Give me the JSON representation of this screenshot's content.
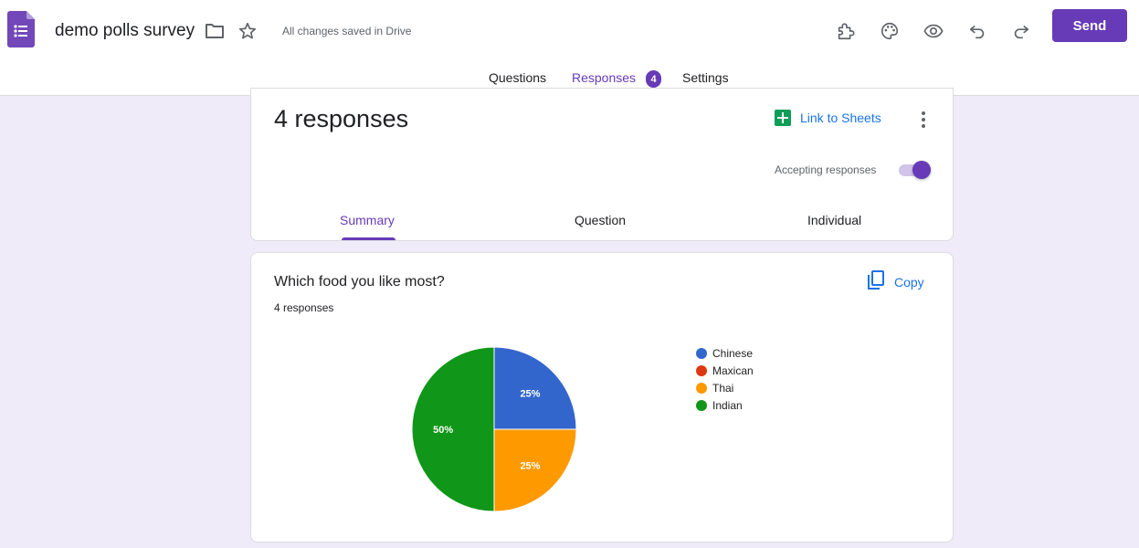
{
  "header": {
    "doc_title": "demo polls survey",
    "save_status": "All changes saved in Drive",
    "send_label": "Send",
    "icons": [
      "forms-logo-icon",
      "folder-icon",
      "star-icon",
      "addon-icon",
      "palette-icon",
      "preview-eye-icon",
      "undo-icon",
      "redo-icon"
    ]
  },
  "tabs": {
    "questions": "Questions",
    "responses": "Responses",
    "responses_badge": "4",
    "settings": "Settings"
  },
  "responses_card": {
    "count_text": "4 responses",
    "link_sheets": "Link to Sheets",
    "accepting_label": "Accepting responses",
    "accepting_on": true,
    "subtabs": {
      "summary": "Summary",
      "question": "Question",
      "individual": "Individual"
    }
  },
  "question_card": {
    "title": "Which food you like most?",
    "count_text": "4 responses",
    "copy_label": "Copy"
  },
  "colors": {
    "accent": "#673ab7",
    "link": "#1a73e8",
    "background": "#f0ebf8"
  },
  "chart_data": {
    "type": "pie",
    "title": "",
    "categories": [
      "Chinese",
      "Maxican",
      "Thai",
      "Indian"
    ],
    "values": [
      1,
      0,
      1,
      2
    ],
    "percent_labels": [
      "25%",
      "0%",
      "25%",
      "50%"
    ],
    "colors": [
      "#3366cc",
      "#dc3912",
      "#ff9900",
      "#109618"
    ],
    "legend_position": "right"
  }
}
